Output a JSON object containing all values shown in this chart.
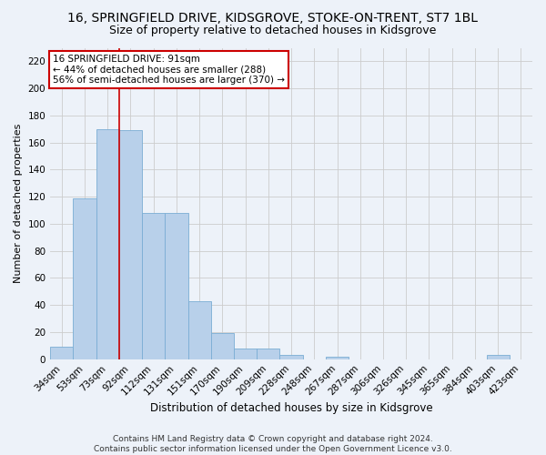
{
  "title": "16, SPRINGFIELD DRIVE, KIDSGROVE, STOKE-ON-TRENT, ST7 1BL",
  "subtitle": "Size of property relative to detached houses in Kidsgrove",
  "xlabel": "Distribution of detached houses by size in Kidsgrove",
  "ylabel": "Number of detached properties",
  "categories": [
    "34sqm",
    "53sqm",
    "73sqm",
    "92sqm",
    "112sqm",
    "131sqm",
    "151sqm",
    "170sqm",
    "190sqm",
    "209sqm",
    "228sqm",
    "248sqm",
    "267sqm",
    "287sqm",
    "306sqm",
    "326sqm",
    "345sqm",
    "365sqm",
    "384sqm",
    "403sqm",
    "423sqm"
  ],
  "values": [
    9,
    119,
    170,
    169,
    108,
    108,
    43,
    19,
    8,
    8,
    3,
    0,
    2,
    0,
    0,
    0,
    0,
    0,
    0,
    3,
    0
  ],
  "bar_color": "#b8d0ea",
  "bar_edge_color": "#7aadd4",
  "vline_x_idx": 3,
  "vline_color": "#cc0000",
  "annotation_text": "16 SPRINGFIELD DRIVE: 91sqm\n← 44% of detached houses are smaller (288)\n56% of semi-detached houses are larger (370) →",
  "annotation_box_color": "#ffffff",
  "annotation_box_edge": "#cc0000",
  "ylim": [
    0,
    230
  ],
  "yticks": [
    0,
    20,
    40,
    60,
    80,
    100,
    120,
    140,
    160,
    180,
    200,
    220
  ],
  "grid_color": "#cccccc",
  "bg_color": "#edf2f9",
  "footer": "Contains HM Land Registry data © Crown copyright and database right 2024.\nContains public sector information licensed under the Open Government Licence v3.0.",
  "title_fontsize": 10,
  "subtitle_fontsize": 9,
  "xlabel_fontsize": 8.5,
  "ylabel_fontsize": 8,
  "tick_fontsize": 7.5,
  "annotation_fontsize": 7.5,
  "footer_fontsize": 6.5
}
